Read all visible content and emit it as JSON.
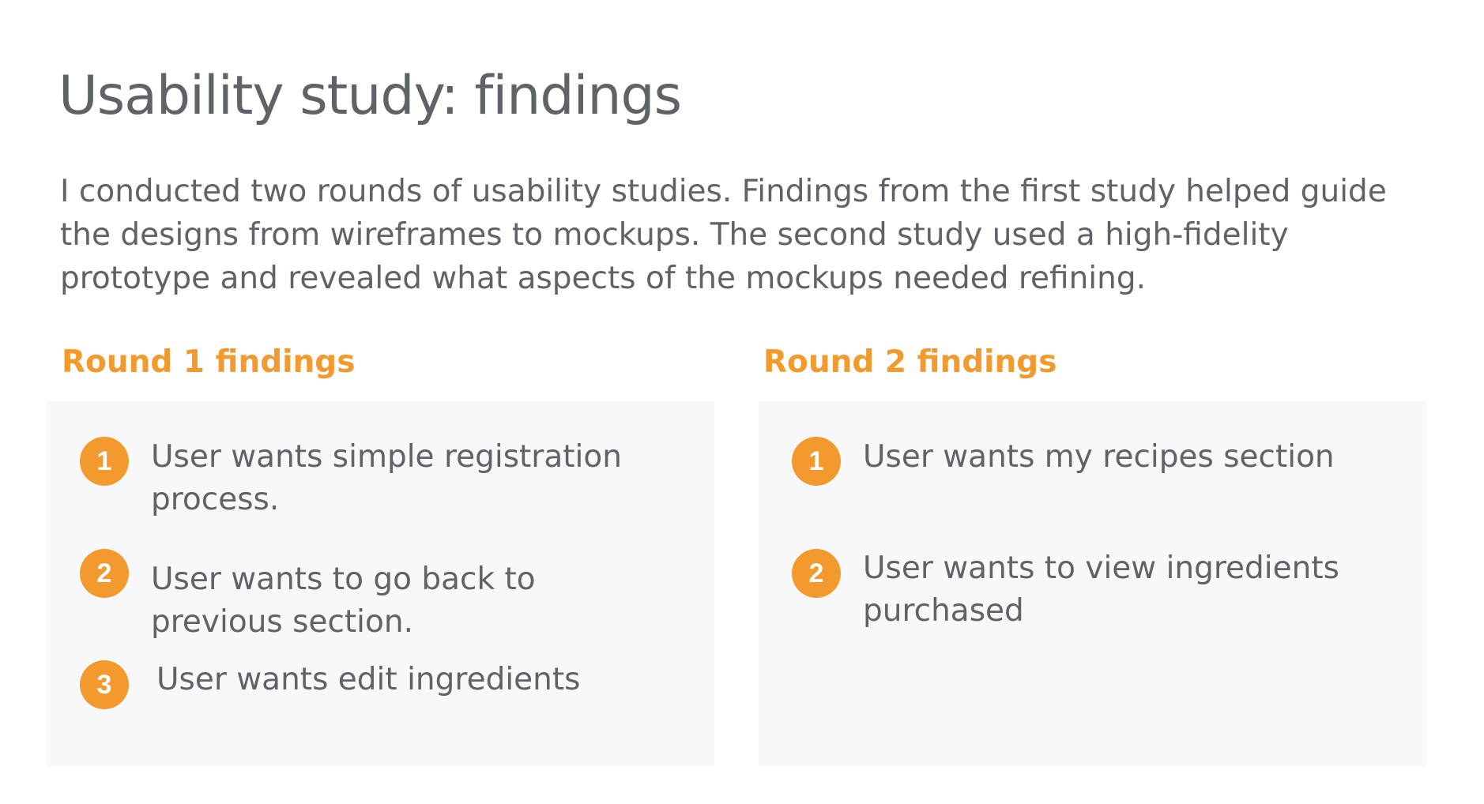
{
  "title": "Usability study: findings",
  "intro": "I conducted two rounds of usability studies. Findings from the first study helped guide the designs from wireframes to mockups. The second study used a high-fidelity prototype and revealed what aspects of the mockups needed refining.",
  "colors": {
    "accent": "#f29a2e",
    "text": "#5f6368",
    "panel_background": "#f7f8fa"
  },
  "rounds": [
    {
      "heading": "Round 1 findings",
      "findings": [
        {
          "number": "1",
          "text": "User wants simple registration process."
        },
        {
          "number": "2",
          "text": "User wants to go back to previous section."
        },
        {
          "number": "3",
          "text": "User wants edit ingredients"
        }
      ]
    },
    {
      "heading": "Round 2 findings",
      "findings": [
        {
          "number": "1",
          "text": "User wants my recipes section"
        },
        {
          "number": "2",
          "text": "User wants to view ingredients purchased"
        }
      ]
    }
  ]
}
